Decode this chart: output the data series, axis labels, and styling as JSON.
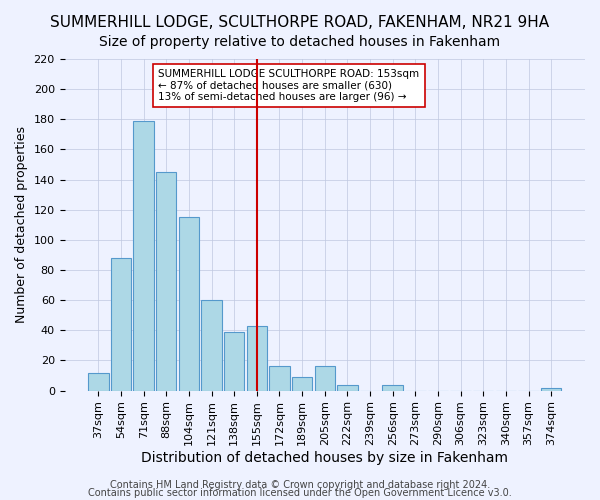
{
  "title": "SUMMERHILL LODGE, SCULTHORPE ROAD, FAKENHAM, NR21 9HA",
  "subtitle": "Size of property relative to detached houses in Fakenham",
  "xlabel": "Distribution of detached houses by size in Fakenham",
  "ylabel": "Number of detached properties",
  "bar_labels": [
    "37sqm",
    "54sqm",
    "71sqm",
    "88sqm",
    "104sqm",
    "121sqm",
    "138sqm",
    "155sqm",
    "172sqm",
    "189sqm",
    "205sqm",
    "222sqm",
    "239sqm",
    "256sqm",
    "273sqm",
    "290sqm",
    "306sqm",
    "323sqm",
    "340sqm",
    "357sqm",
    "374sqm"
  ],
  "bar_values": [
    12,
    88,
    179,
    145,
    115,
    60,
    39,
    43,
    16,
    9,
    16,
    4,
    0,
    4,
    0,
    0,
    0,
    0,
    0,
    0,
    2
  ],
  "bar_color": "#add8e6",
  "bar_edge_color": "#5599cc",
  "vline_x": 7,
  "vline_color": "#cc0000",
  "ylim": [
    0,
    220
  ],
  "yticks": [
    0,
    20,
    40,
    60,
    80,
    100,
    120,
    140,
    160,
    180,
    200,
    220
  ],
  "annotation_title": "SUMMERHILL LODGE SCULTHORPE ROAD: 153sqm",
  "annotation_line1": "← 87% of detached houses are smaller (630)",
  "annotation_line2": "13% of semi-detached houses are larger (96) →",
  "annotation_box_color": "#ffffff",
  "annotation_box_edge": "#cc0000",
  "footer1": "Contains HM Land Registry data © Crown copyright and database right 2024.",
  "footer2": "Contains public sector information licensed under the Open Government Licence v3.0.",
  "bg_color": "#eef2ff",
  "plot_bg_color": "#eef2ff",
  "title_fontsize": 11,
  "subtitle_fontsize": 10,
  "xlabel_fontsize": 10,
  "ylabel_fontsize": 9,
  "tick_fontsize": 8,
  "footer_fontsize": 7
}
